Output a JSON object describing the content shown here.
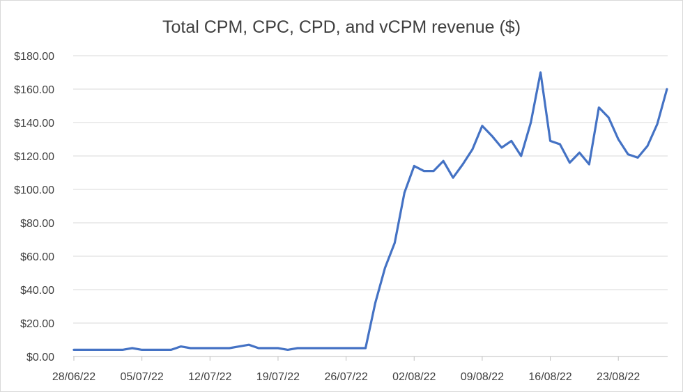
{
  "chart_data": {
    "type": "line",
    "title": "Total CPM, CPC, CPD, and vCPM revenue ($)",
    "xlabel": "",
    "ylabel": "",
    "ylim": [
      0,
      180
    ],
    "yticks": [
      {
        "value": 0,
        "label": "$0.00"
      },
      {
        "value": 20,
        "label": "$20.00"
      },
      {
        "value": 40,
        "label": "$40.00"
      },
      {
        "value": 60,
        "label": "$60.00"
      },
      {
        "value": 80,
        "label": "$80.00"
      },
      {
        "value": 100,
        "label": "$100.00"
      },
      {
        "value": 120,
        "label": "$120.00"
      },
      {
        "value": 140,
        "label": "$140.00"
      },
      {
        "value": 160,
        "label": "$160.00"
      },
      {
        "value": 180,
        "label": "$180.00"
      }
    ],
    "xticks": [
      {
        "index": 0,
        "label": "28/06/22"
      },
      {
        "index": 7,
        "label": "05/07/22"
      },
      {
        "index": 14,
        "label": "12/07/22"
      },
      {
        "index": 21,
        "label": "19/07/22"
      },
      {
        "index": 28,
        "label": "26/07/22"
      },
      {
        "index": 35,
        "label": "02/08/22"
      },
      {
        "index": 42,
        "label": "09/08/22"
      },
      {
        "index": 49,
        "label": "16/08/22"
      },
      {
        "index": 56,
        "label": "23/08/22"
      }
    ],
    "grid": true,
    "series": [
      {
        "name": "Total CPM, CPC, CPD, and vCPM revenue ($)",
        "color": "#4472c4",
        "values": [
          4,
          4,
          4,
          4,
          4,
          4,
          5,
          4,
          4,
          4,
          4,
          6,
          5,
          5,
          5,
          5,
          5,
          6,
          7,
          5,
          5,
          5,
          4,
          5,
          5,
          5,
          5,
          5,
          5,
          5,
          5,
          32,
          53,
          68,
          98,
          114,
          111,
          111,
          117,
          107,
          115,
          124,
          138,
          132,
          125,
          129,
          120,
          140,
          170,
          129,
          127,
          116,
          122,
          115,
          149,
          143,
          130,
          121,
          119,
          126,
          139,
          160
        ]
      }
    ]
  }
}
